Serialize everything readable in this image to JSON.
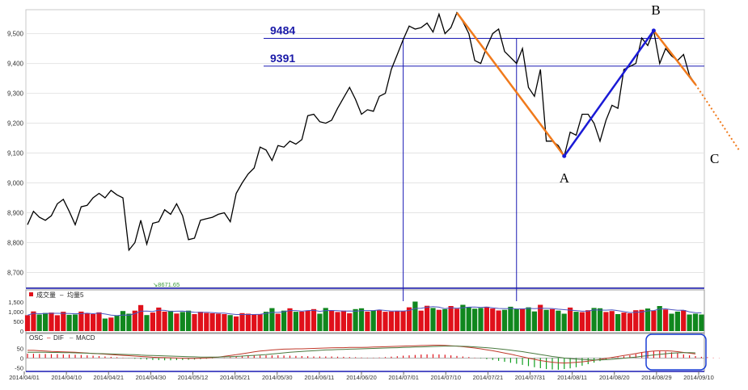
{
  "chart_data": [
    {
      "type": "line",
      "panel": "price",
      "ylim": [
        8650,
        9580
      ],
      "y_ticks": [
        8700,
        8800,
        8900,
        9000,
        9100,
        9200,
        9300,
        9400,
        9500
      ],
      "y_tick_labels": [
        "8,700",
        "8,800",
        "8,900",
        "9,000",
        "9,100",
        "9,200",
        "9,300",
        "9,400",
        "9,500"
      ],
      "grid": true,
      "series": [
        {
          "color": "#000000",
          "values": [
            8860,
            8905,
            8885,
            8875,
            8890,
            8930,
            8945,
            8905,
            8860,
            8920,
            8925,
            8950,
            8965,
            8950,
            8975,
            8960,
            8950,
            8775,
            8800,
            8875,
            8795,
            8865,
            8870,
            8910,
            8895,
            8930,
            8890,
            8810,
            8815,
            8875,
            8880,
            8885,
            8895,
            8900,
            8870,
            8965,
            9000,
            9030,
            9050,
            9120,
            9110,
            9075,
            9125,
            9120,
            9140,
            9130,
            9145,
            9225,
            9230,
            9205,
            9200,
            9210,
            9250,
            9285,
            9320,
            9280,
            9230,
            9245,
            9240,
            9290,
            9300,
            9380,
            9430,
            9480,
            9525,
            9515,
            9520,
            9535,
            9505,
            9565,
            9500,
            9520,
            9570,
            9540,
            9500,
            9410,
            9400,
            9455,
            9500,
            9515,
            9440,
            9420,
            9400,
            9450,
            9320,
            9290,
            9380,
            9140,
            9140,
            9125,
            9090,
            9170,
            9160,
            9230,
            9230,
            9200,
            9140,
            9210,
            9260,
            9250,
            9380,
            9390,
            9400,
            9485,
            9460,
            9510,
            9400,
            9450,
            9425,
            9410,
            9430,
            9360,
            9330
          ]
        }
      ],
      "horizontal_lines": [
        {
          "label": "9484",
          "value": 9484
        },
        {
          "label": "9391",
          "value": 9391
        }
      ],
      "trend_points": [
        {
          "label": "A",
          "value": 9090
        },
        {
          "label": "B",
          "value": 9510
        },
        {
          "label": "C",
          "value": ""
        }
      ],
      "min_marker": {
        "label": "8671.65",
        "value": 8671.65
      }
    },
    {
      "type": "bar",
      "panel": "volume",
      "legend": [
        "成交量",
        "均量5"
      ],
      "ylim": [
        0,
        1550
      ],
      "y_tick_labels": [
        "1,500",
        "1,000",
        "500",
        "0"
      ],
      "colors": {
        "up": "#e0101a",
        "down": "#10871e",
        "ma": "#4c55c0"
      },
      "values": [
        820,
        1020,
        860,
        940,
        960,
        820,
        1000,
        840,
        860,
        1010,
        920,
        880,
        970,
        650,
        700,
        810,
        1040,
        900,
        1060,
        1350,
        830,
        960,
        1220,
        1010,
        1050,
        910,
        990,
        1060,
        880,
        1000,
        940,
        920,
        900,
        880,
        830,
        760,
        930,
        900,
        880,
        870,
        1000,
        1190,
        900,
        1060,
        1180,
        1000,
        1010,
        1060,
        1140,
        900,
        1200,
        1050,
        990,
        1060,
        920,
        1140,
        1180,
        1010,
        1070,
        1080,
        1000,
        1020,
        1040,
        1050,
        1230,
        1530,
        1060,
        1310,
        1200,
        1100,
        1140,
        1300,
        1160,
        1360,
        1250,
        1160,
        1200,
        1260,
        1170,
        1070,
        1100,
        1260,
        1130,
        1170,
        1230,
        1020,
        1360,
        1100,
        1140,
        1060,
        900,
        1220,
        1000,
        980,
        1080,
        1200,
        1180,
        990,
        1040,
        880,
        960,
        920,
        1080,
        1100,
        1170,
        1060,
        1300,
        1120,
        900,
        1010,
        1090,
        860,
        900,
        860
      ]
    },
    {
      "type": "bar",
      "panel": "macd",
      "legend": [
        "OSC",
        "DIF",
        "MACD"
      ],
      "ylim": [
        -70,
        90
      ],
      "y_tick_labels": [
        "50",
        "0",
        "-50"
      ],
      "osc": [
        22,
        22,
        21,
        21,
        20,
        20,
        19,
        18,
        17,
        16,
        14,
        12,
        10,
        8,
        6,
        4,
        2,
        -1,
        -4,
        -6,
        -8,
        -10,
        -11,
        -12,
        -12,
        -11,
        -10,
        -9,
        -8,
        -6,
        -4,
        -2,
        0,
        2,
        4,
        6,
        8,
        10,
        12,
        13,
        14,
        14,
        14,
        13,
        12,
        11,
        10,
        9,
        8,
        8,
        8,
        8,
        7,
        6,
        5,
        4,
        3,
        2,
        2,
        3,
        5,
        7,
        9,
        12,
        14,
        16,
        18,
        19,
        20,
        19,
        17,
        14,
        11,
        8,
        5,
        2,
        -2,
        -6,
        -10,
        -15,
        -20,
        -25,
        -30,
        -36,
        -42,
        -48,
        -53,
        -58,
        -60,
        -61,
        -58,
        -54,
        -48,
        -40,
        -32,
        -24,
        -16,
        -8,
        -2,
        4,
        9,
        14,
        20,
        27,
        32,
        35,
        36,
        34,
        30,
        25,
        19,
        14,
        10,
        6,
        4,
        2,
        1
      ],
      "dif": [
        40,
        40,
        38,
        36,
        34,
        33,
        32,
        31,
        30,
        28,
        26,
        24,
        22,
        20,
        18,
        16,
        14,
        12,
        10,
        8,
        6,
        4,
        3,
        2,
        1,
        0,
        -1,
        -2,
        -2,
        -1,
        0,
        2,
        5,
        9,
        13,
        17,
        22,
        27,
        32,
        36,
        39,
        42,
        44,
        46,
        47,
        48,
        48,
        49,
        50,
        51,
        52,
        53,
        54,
        54,
        55,
        55,
        55,
        56,
        57,
        58,
        59,
        60,
        61,
        62,
        63,
        64,
        65,
        66,
        67,
        67,
        66,
        64,
        62,
        59,
        56,
        52,
        48,
        43,
        38,
        32,
        26,
        20,
        13,
        6,
        -1,
        -7,
        -13,
        -18,
        -22,
        -25,
        -26,
        -25,
        -23,
        -20,
        -16,
        -12,
        -7,
        -2,
        3,
        8,
        13,
        18,
        23,
        29,
        33,
        36,
        38,
        38,
        36,
        33,
        29,
        25,
        21
      ],
      "macd": [
        30,
        30,
        30,
        30,
        29,
        29,
        28,
        28,
        27,
        26,
        25,
        24,
        23,
        22,
        21,
        20,
        19,
        18,
        17,
        15,
        14,
        13,
        12,
        11,
        10,
        9,
        8,
        7,
        6,
        5,
        5,
        5,
        5,
        6,
        7,
        8,
        10,
        12,
        14,
        16,
        18,
        21,
        24,
        27,
        30,
        32,
        34,
        36,
        38,
        40,
        42,
        43,
        44,
        45,
        46,
        47,
        48,
        49,
        50,
        51,
        52,
        53,
        54,
        55,
        56,
        57,
        58,
        59,
        60,
        61,
        62,
        62,
        62,
        61,
        60,
        58,
        56,
        54,
        51,
        48,
        45,
        41,
        37,
        33,
        28,
        23,
        18,
        13,
        8,
        4,
        0,
        -3,
        -6,
        -8,
        -9,
        -10,
        -10,
        -9,
        -7,
        -4,
        -1,
        2,
        5,
        9,
        12,
        16,
        19,
        22,
        25,
        27,
        28,
        28,
        27
      ]
    }
  ],
  "x_labels": [
    "2014/04/01",
    "2014/04/10",
    "2014/04/21",
    "2014/04/30",
    "2014/05/12",
    "2014/05/21",
    "2014/05/30",
    "2014/06/11",
    "2014/06/20",
    "2014/07/01",
    "2014/07/10",
    "2014/07/21",
    "2014/07/31",
    "2014/08/11",
    "2014/08/20",
    "2014/08/29",
    "2014/09/10"
  ]
}
